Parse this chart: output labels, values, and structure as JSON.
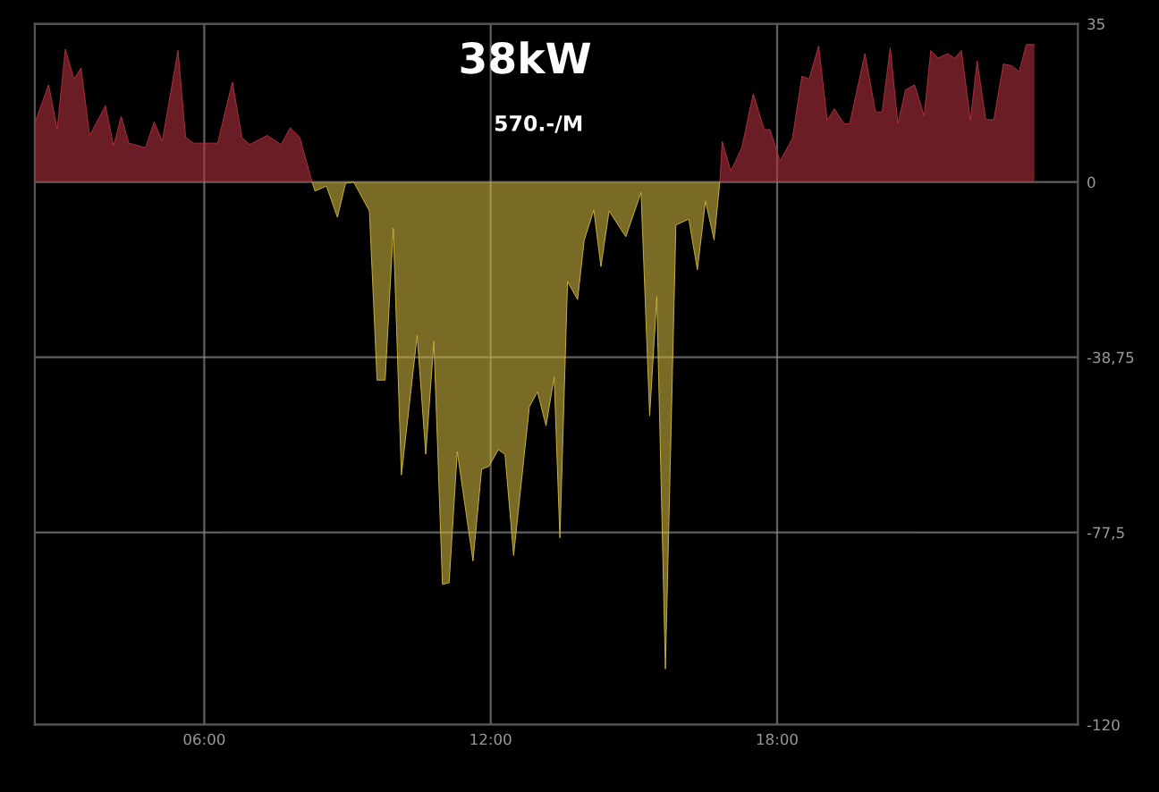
{
  "chart_data": {
    "type": "area",
    "title": "38kW",
    "subtitle": "570.-/M",
    "xlim": [
      2.45,
      24.3
    ],
    "xticks": [
      {
        "value": 6,
        "label": "06:00"
      },
      {
        "value": 12,
        "label": "12:00"
      },
      {
        "value": 18,
        "label": "18:00"
      }
    ],
    "ylim": [
      -120,
      35
    ],
    "yticks": [
      35,
      0,
      {
        "value": -38.75,
        "label": "-38,75"
      },
      {
        "value": -77.5,
        "label": "-77,5"
      },
      -120
    ],
    "grid": true,
    "series": [
      {
        "color": "#b0303c",
        "x": [
          2.45,
          2.74,
          2.92,
          3.09,
          3.27,
          3.42,
          3.6,
          3.93,
          4.1,
          4.26,
          4.42,
          4.77,
          4.95,
          5.12,
          5.45,
          5.61,
          5.77,
          6.28,
          6.59,
          6.79,
          6.95,
          7.32,
          7.61,
          7.8,
          8.0,
          8.26,
          12.0,
          16.8,
          16.85,
          17.03,
          17.26,
          17.5,
          17.73,
          17.85,
          18.06,
          18.32,
          18.52,
          18.67,
          18.87,
          19.05,
          19.2,
          19.4,
          19.52,
          19.84,
          20.06,
          20.2,
          20.37,
          20.53,
          20.69,
          20.88,
          21.08,
          21.22,
          21.37,
          21.57,
          21.72,
          21.86,
          22.05,
          22.19,
          22.37,
          22.54,
          22.74,
          22.92,
          23.07,
          23.22,
          23.39
        ],
        "values": [
          13.0,
          21.5,
          11.6,
          29.4,
          22.8,
          25.2,
          10.3,
          16.9,
          8.0,
          14.5,
          8.6,
          7.6,
          13.3,
          9.0,
          29.1,
          9.9,
          8.6,
          8.6,
          22.1,
          9.9,
          8.3,
          10.3,
          8.3,
          12.0,
          9.9,
          0,
          null,
          0,
          9.0,
          2.4,
          7.6,
          19.5,
          11.6,
          11.6,
          4.6,
          9.6,
          23.4,
          22.8,
          30.1,
          13.6,
          16.2,
          12.9,
          12.9,
          28.4,
          15.5,
          15.5,
          29.7,
          12.9,
          20.4,
          21.5,
          14.6,
          29.1,
          27.4,
          28.4,
          27.4,
          29.1,
          13.6,
          26.8,
          13.8,
          13.8,
          26.1,
          25.7,
          24.4,
          30.4,
          30.4
        ]
      },
      {
        "color": "#c9b23e",
        "x": [
          8.26,
          8.32,
          8.56,
          8.79,
          8.96,
          9.13,
          9.46,
          9.62,
          9.79,
          9.96,
          10.13,
          10.46,
          10.64,
          10.81,
          10.99,
          11.13,
          11.3,
          11.63,
          11.81,
          11.96,
          12.16,
          12.3,
          12.48,
          12.81,
          12.98,
          13.16,
          13.33,
          13.45,
          13.61,
          13.82,
          13.96,
          14.16,
          14.31,
          14.48,
          14.83,
          15.15,
          15.33,
          15.48,
          15.66,
          15.88,
          16.15,
          16.33,
          16.5,
          16.68,
          16.8
        ],
        "values": [
          0,
          -2.0,
          -0.9,
          -7.8,
          -0.3,
          0,
          -6.4,
          -43.8,
          -43.8,
          -10.2,
          -64.8,
          -33.9,
          -60.2,
          -35.2,
          -89.0,
          -88.6,
          -59.6,
          -83.8,
          -63.5,
          -62.9,
          -59.2,
          -60.2,
          -82.6,
          -49.7,
          -46.4,
          -53.9,
          -43.1,
          -78.7,
          -22.0,
          -26.0,
          -12.8,
          -6.2,
          -18.7,
          -6.4,
          -12.1,
          -2.3,
          -51.7,
          -25.3,
          -107.7,
          -9.5,
          -8.2,
          -19.4,
          -4.2,
          -12.8,
          0
        ]
      }
    ]
  }
}
